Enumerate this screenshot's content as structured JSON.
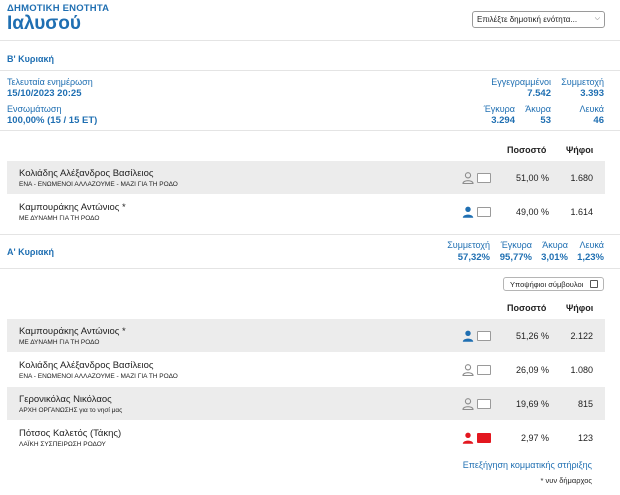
{
  "header": {
    "subtitle": "ΔΗΜΟΤΙΚΗ ΕΝΟΤΗΤΑ",
    "title": "Ιαλυσού",
    "select_value": "Επιλέξτε δημοτική ενότητα..."
  },
  "second_round": {
    "label": "Β' Κυριακή",
    "last_update_label": "Τελευταία ενημέρωση",
    "last_update_value": "15/10/2023 20:25",
    "integration_label": "Ενσωμάτωση",
    "integration_value": "100,00% (15 / 15 ΕΤ)",
    "registered_label": "Εγγεγραμμένοι",
    "registered_value": "7.542",
    "turnout_label": "Συμμετοχή",
    "turnout_value": "3.393",
    "valid_label": "Έγκυρα",
    "valid_value": "3.294",
    "invalid_label": "Άκυρα",
    "invalid_value": "53",
    "blank_label": "Λευκά",
    "blank_value": "46",
    "col_pct": "Ποσοστό",
    "col_votes": "Ψήφοι",
    "candidates": [
      {
        "name": "Κολιάδης Αλέξανδρος Βασίλειος",
        "party": "ΕΝΑ - ΕΝΩΜΕΝΟΙ ΑΛΛΑΖΟΥΜΕ - ΜΑΖΙ ΓΙΑ ΤΗ ΡΟΔΟ",
        "pct": "51,00 %",
        "votes": "1.680",
        "color": "#ffffff",
        "icon": "person-grey-icon"
      },
      {
        "name": "Καμπουράκης Αντώνιος *",
        "party": "ΜΕ ΔΥΝΑΜΗ ΓΙΑ ΤΗ ΡΟΔΟ",
        "pct": "49,00 %",
        "votes": "1.614",
        "color": "#ffffff",
        "icon": "person-blue-icon"
      }
    ]
  },
  "first_round": {
    "label": "Α' Κυριακή",
    "turnout_label": "Συμμετοχή",
    "turnout_value": "57,32%",
    "valid_label": "Έγκυρα",
    "valid_value": "95,77%",
    "invalid_label": "Άκυρα",
    "invalid_value": "3,01%",
    "blank_label": "Λευκά",
    "blank_value": "1,23%",
    "councillors_button": "Υποψήφιοι σύμβουλοι",
    "col_pct": "Ποσοστό",
    "col_votes": "Ψήφοι",
    "candidates": [
      {
        "name": "Καμπουράκης Αντώνιος *",
        "party": "ΜΕ ΔΥΝΑΜΗ ΓΙΑ ΤΗ ΡΟΔΟ",
        "pct": "51,26 %",
        "votes": "2.122",
        "color": "#ffffff",
        "icon": "person-blue-icon"
      },
      {
        "name": "Κολιάδης Αλέξανδρος Βασίλειος",
        "party": "ΕΝΑ - ΕΝΩΜΕΝΟΙ ΑΛΛΑΖΟΥΜΕ - ΜΑΖΙ ΓΙΑ ΤΗ ΡΟΔΟ",
        "pct": "26,09 %",
        "votes": "1.080",
        "color": "#ffffff",
        "icon": "person-grey-icon"
      },
      {
        "name": "Γερονικόλας Νικόλαος",
        "party": "ΑΡΧΗ ΟΡΓΑΝΩΣΗΣ για το νησί μας",
        "pct": "19,69 %",
        "votes": "815",
        "color": "#ffffff",
        "icon": "person-grey-icon"
      },
      {
        "name": "Πότσος Καλετός (Τάκης)",
        "party": "ΛΑΪΚΗ ΣΥΣΠΕΙΡΩΣΗ ΡΟΔΟΥ",
        "pct": "2,97 %",
        "votes": "123",
        "color": "#e3171f",
        "icon": "person-red-icon"
      }
    ],
    "support_link": "Επεξήγηση κομματικής στήριξης",
    "mayor_note": "* νυν δήμαρχος"
  },
  "colors": {
    "accent": "#1f6fb2",
    "person_grey": "#8c8c8c",
    "person_blue": "#1f6fb2",
    "person_red": "#e3171f"
  }
}
